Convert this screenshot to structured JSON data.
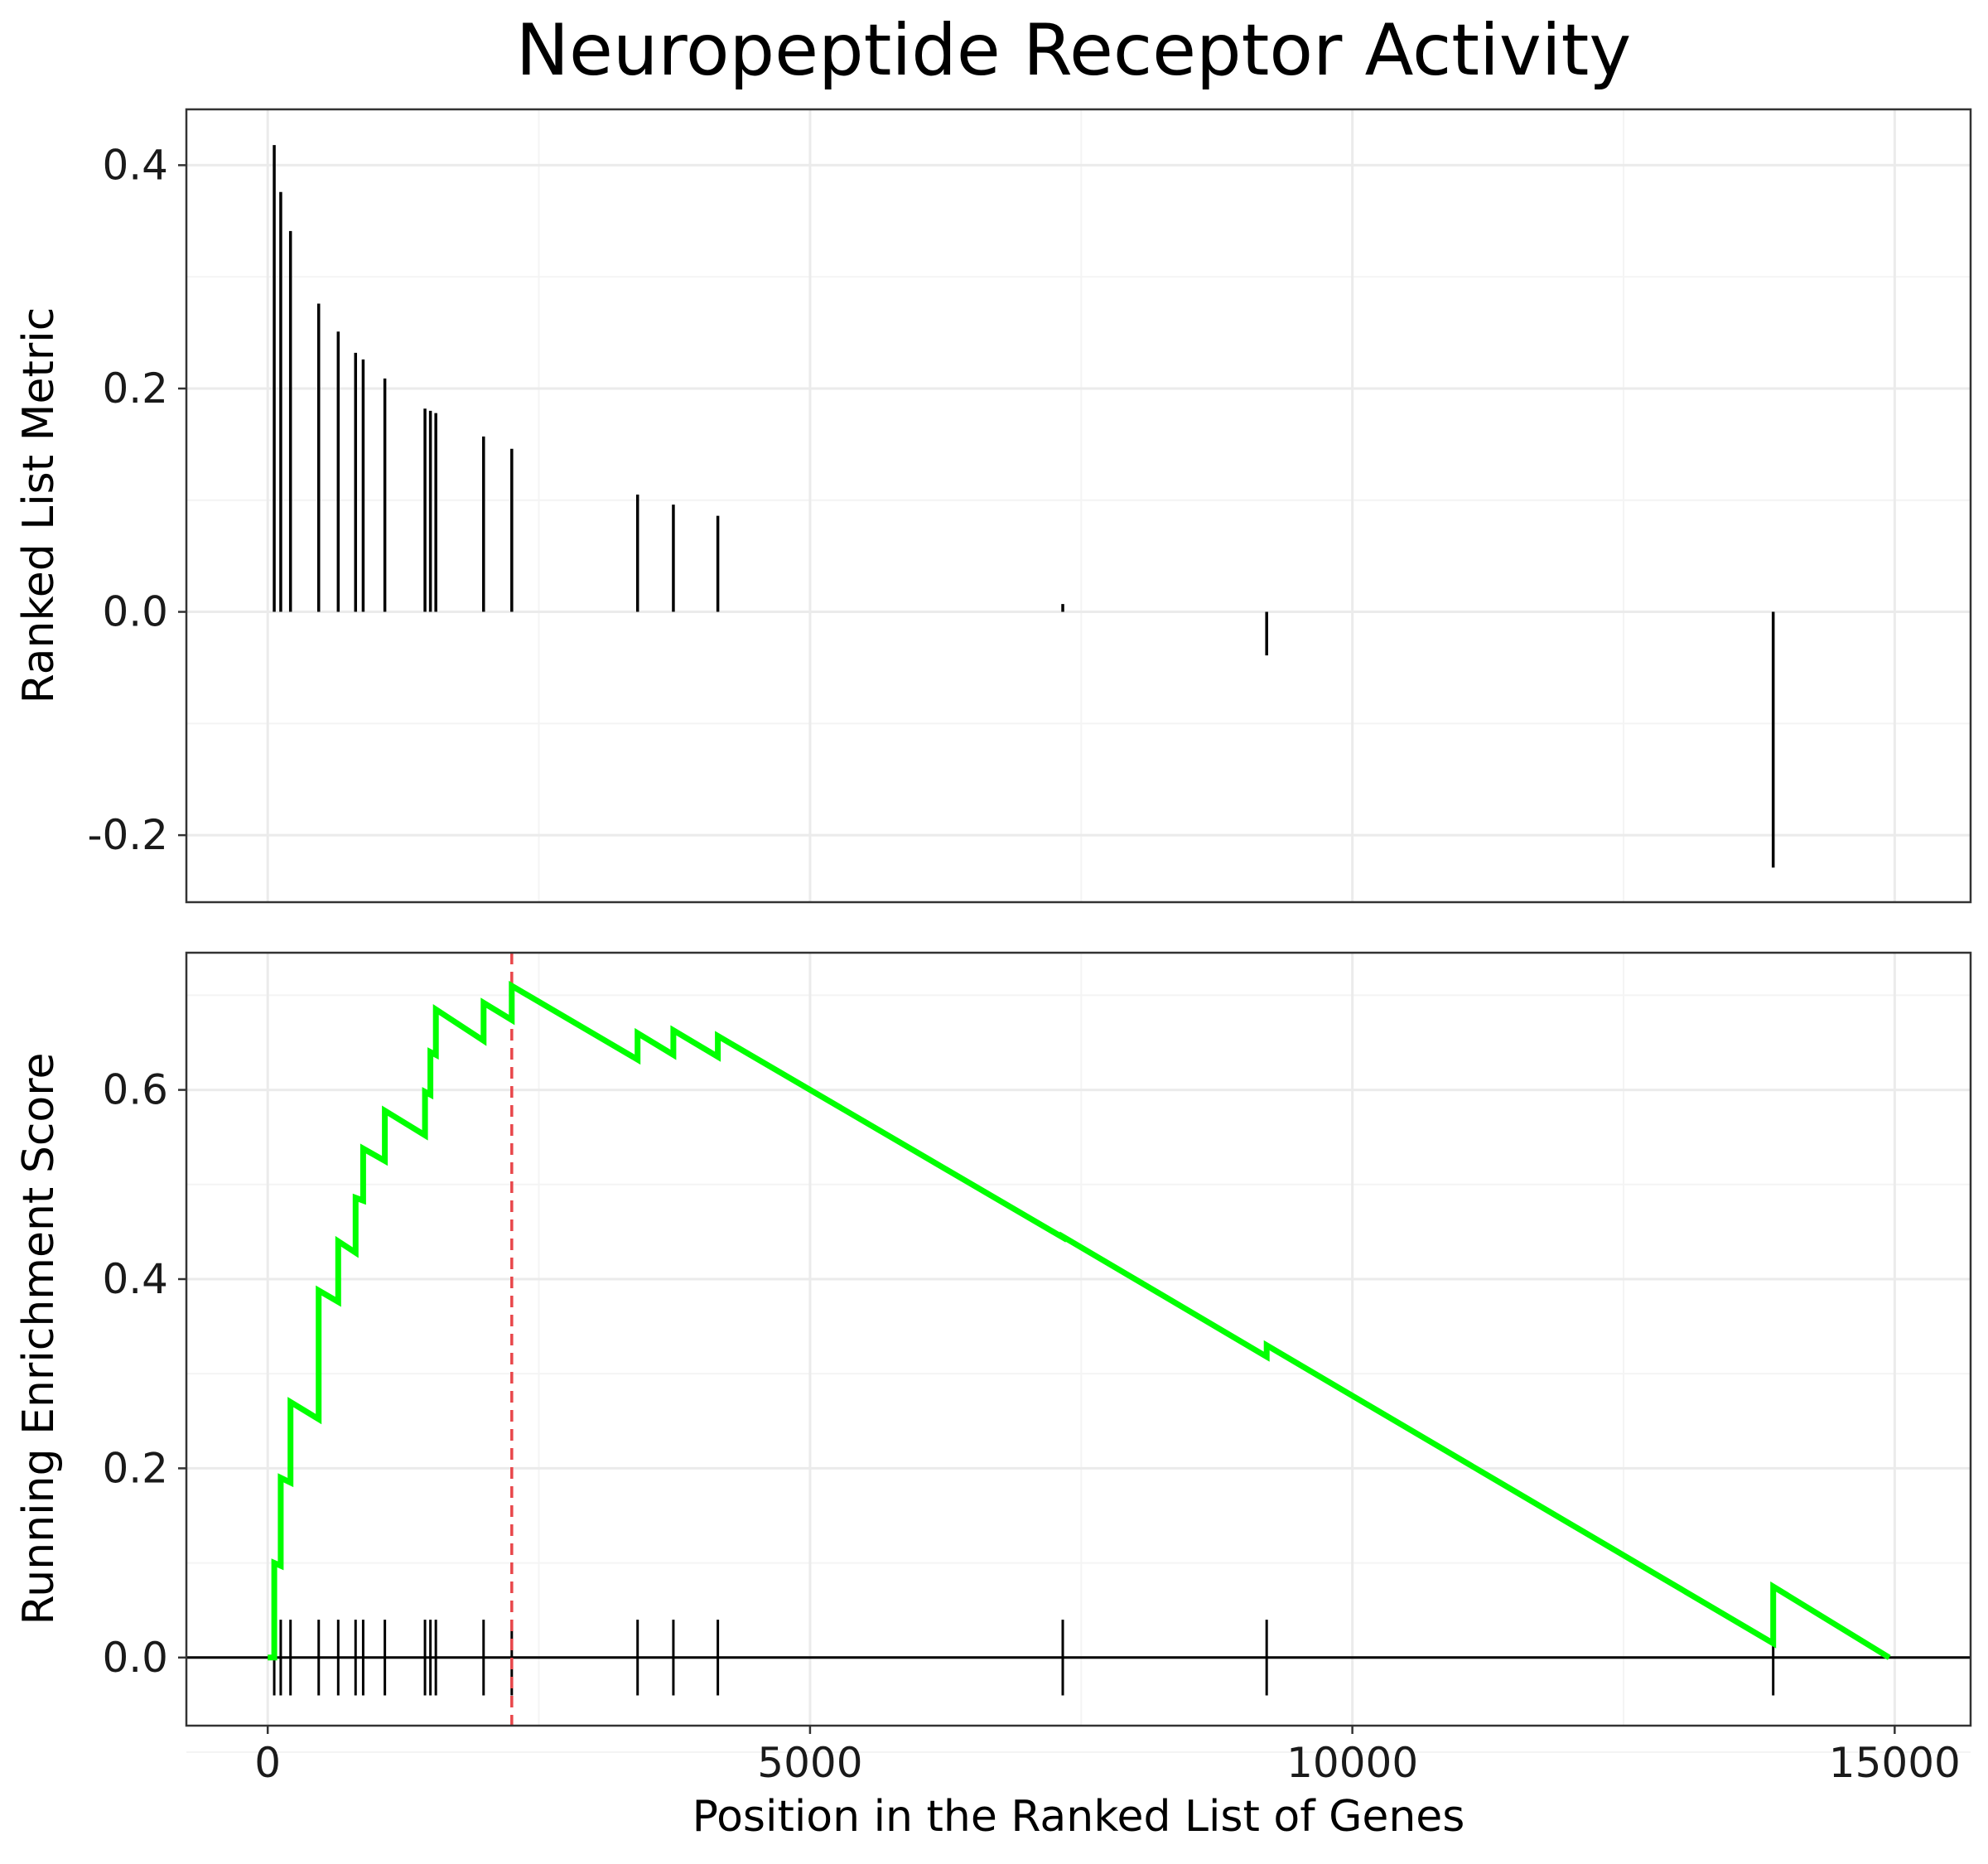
{
  "chart_data": [
    {
      "type": "bar",
      "panel": "top",
      "title": "Neuropeptide Receptor Activity",
      "ylabel": "Ranked List Metric",
      "xlabel": "",
      "xlim": [
        -750,
        15700
      ],
      "ylim": [
        -0.26,
        0.45
      ],
      "y_ticks": [
        -0.2,
        0.0,
        0.2,
        0.4
      ],
      "y_tick_labels": [
        "-0.2",
        "0.0",
        "0.2",
        "0.4"
      ],
      "x_grid": [
        0,
        5000,
        10000,
        15000
      ],
      "grid": true,
      "points": [
        {
          "x": 60,
          "y": 0.418
        },
        {
          "x": 120,
          "y": 0.376
        },
        {
          "x": 210,
          "y": 0.341
        },
        {
          "x": 470,
          "y": 0.276
        },
        {
          "x": 650,
          "y": 0.251
        },
        {
          "x": 810,
          "y": 0.232
        },
        {
          "x": 880,
          "y": 0.226
        },
        {
          "x": 1080,
          "y": 0.209
        },
        {
          "x": 1450,
          "y": 0.182
        },
        {
          "x": 1500,
          "y": 0.18
        },
        {
          "x": 1550,
          "y": 0.178
        },
        {
          "x": 1990,
          "y": 0.157
        },
        {
          "x": 2250,
          "y": 0.146
        },
        {
          "x": 3410,
          "y": 0.105
        },
        {
          "x": 3740,
          "y": 0.096
        },
        {
          "x": 4150,
          "y": 0.086
        },
        {
          "x": 7330,
          "y": 0.007
        },
        {
          "x": 9210,
          "y": -0.039
        },
        {
          "x": 13880,
          "y": -0.229
        }
      ]
    },
    {
      "type": "line",
      "panel": "bottom",
      "title": "",
      "ylabel": "Running Enrichment Score",
      "xlabel": "Position in the Ranked List of Genes",
      "xlim": [
        -750,
        15700
      ],
      "ylim": [
        -0.072,
        0.745
      ],
      "x_ticks": [
        0,
        5000,
        10000,
        15000
      ],
      "x_tick_labels": [
        "0",
        "5000",
        "10000",
        "15000"
      ],
      "y_ticks": [
        0.0,
        0.2,
        0.4,
        0.6
      ],
      "y_tick_labels": [
        "0.0",
        "0.2",
        "0.4",
        "0.6"
      ],
      "grid": true,
      "line_color": "#00ff00",
      "peak_line_color": "#e8474b",
      "peak_x": 2250,
      "baseline_y": 0,
      "hit_positions": [
        60,
        120,
        210,
        470,
        650,
        810,
        880,
        1080,
        1450,
        1500,
        1550,
        1990,
        2250,
        3410,
        3740,
        4150,
        7330,
        9210,
        13880
      ],
      "series": [
        {
          "x": [
            0,
            60,
            60,
            120,
            120,
            210,
            210,
            470,
            470,
            650,
            650,
            810,
            810,
            880,
            880,
            1080,
            1080,
            1450,
            1450,
            1500,
            1500,
            1550,
            1550,
            1990,
            1990,
            2250,
            2250,
            3410,
            3410,
            3740,
            3740,
            4150,
            4150,
            7330,
            7330,
            9210,
            9210,
            13880,
            13880,
            14950
          ],
          "y": [
            0.0,
            0.0,
            0.1,
            0.097,
            0.19,
            0.185,
            0.27,
            0.252,
            0.388,
            0.376,
            0.44,
            0.428,
            0.486,
            0.483,
            0.538,
            0.525,
            0.578,
            0.552,
            0.598,
            0.595,
            0.64,
            0.637,
            0.685,
            0.652,
            0.692,
            0.674,
            0.71,
            0.632,
            0.66,
            0.637,
            0.663,
            0.635,
            0.657,
            0.444,
            0.445,
            0.318,
            0.33,
            0.015,
            0.075,
            0.0
          ]
        }
      ]
    }
  ]
}
